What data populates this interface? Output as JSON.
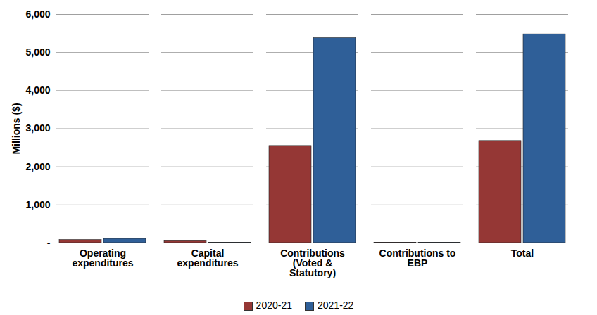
{
  "chart_data": {
    "type": "bar",
    "categories": [
      "Operating expenditures",
      "Capital expenditures",
      "Contributions (Voted & Statutory)",
      "Contributions to EBP",
      "Total"
    ],
    "series": [
      {
        "name": "2020-21",
        "color": "#953735",
        "values": [
          80,
          50,
          2550,
          10,
          2680
        ]
      },
      {
        "name": "2021-22",
        "color": "#2F5F98",
        "values": [
          110,
          10,
          5380,
          10,
          5480
        ]
      }
    ],
    "y_label": "Millions ($)",
    "ylim": [
      0,
      6000
    ],
    "yticks": [
      {
        "value": 0,
        "label": "-"
      },
      {
        "value": 1000,
        "label": "1,000"
      },
      {
        "value": 2000,
        "label": "2,000"
      },
      {
        "value": 3000,
        "label": "3,000"
      },
      {
        "value": 4000,
        "label": "4,000"
      },
      {
        "value": 5000,
        "label": "5,000"
      },
      {
        "value": 6000,
        "label": "6,000"
      }
    ],
    "grid": true,
    "legend": "bottom"
  }
}
